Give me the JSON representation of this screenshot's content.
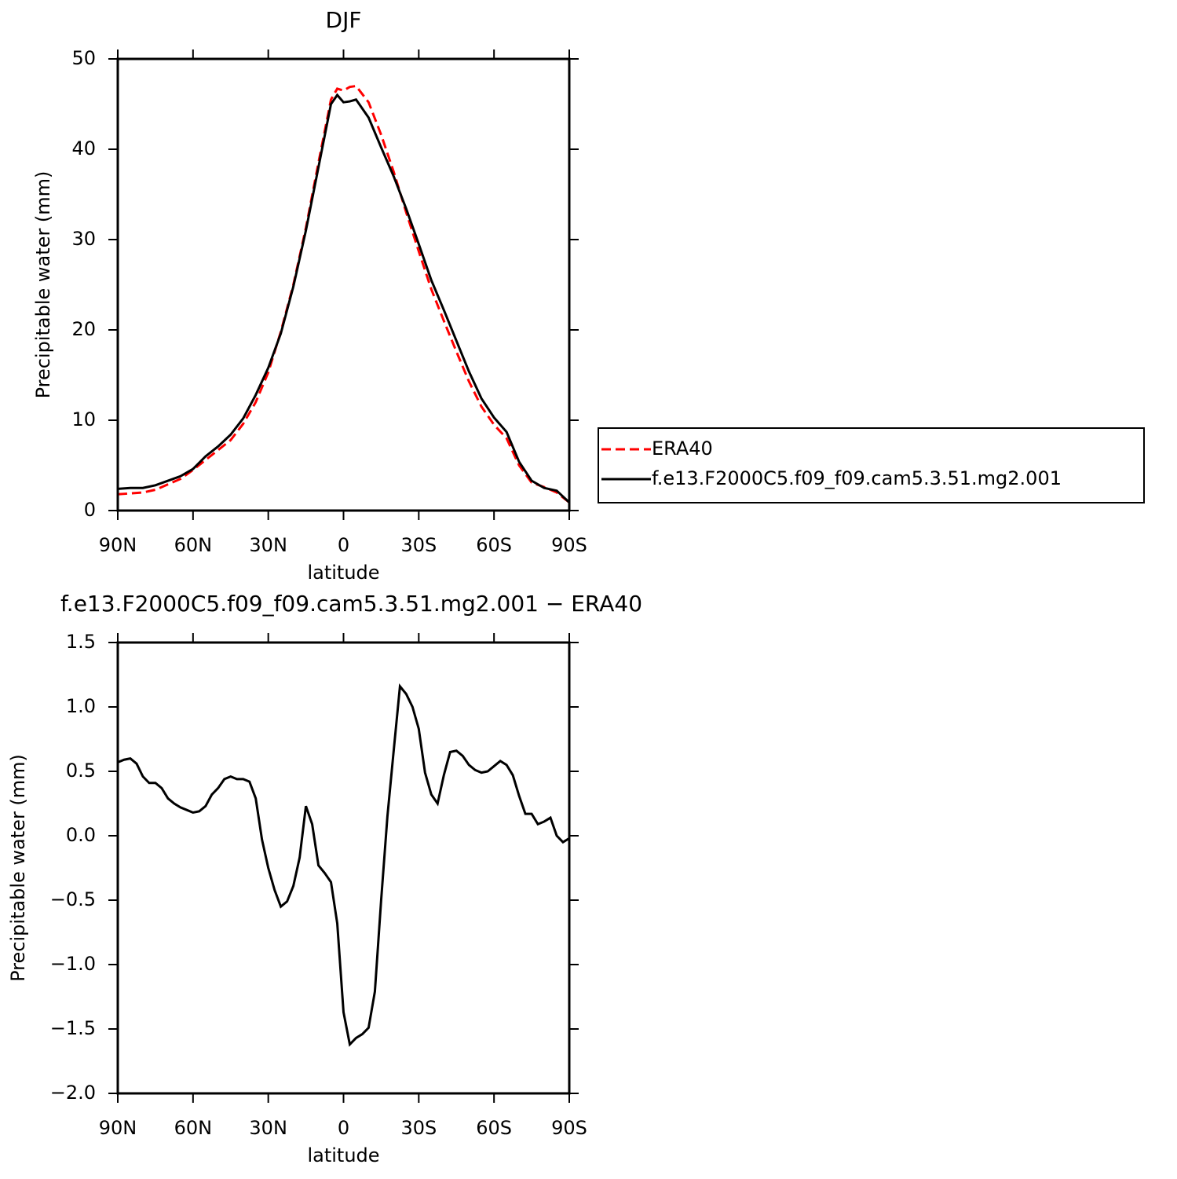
{
  "chart_data": [
    {
      "type": "line",
      "title": "DJF",
      "xlabel": "latitude",
      "ylabel": "Precipitable water (mm)",
      "x": [
        90,
        85,
        80,
        75,
        70,
        65,
        60,
        55,
        50,
        45,
        40,
        35,
        30,
        25,
        20,
        15,
        10,
        5,
        2.5,
        0,
        -2.5,
        -5,
        -10,
        -15,
        -20,
        -25,
        -30,
        -35,
        -40,
        -45,
        -50,
        -55,
        -60,
        -65,
        -70,
        -75,
        -80,
        -85,
        -90
      ],
      "series": [
        {
          "name": "ERA40",
          "color": "#ff0000",
          "dashed": true,
          "values": [
            1.8,
            1.9,
            2.0,
            2.3,
            2.9,
            3.5,
            4.5,
            5.6,
            6.7,
            7.8,
            9.6,
            12.0,
            15.3,
            19.8,
            25,
            31.3,
            38.5,
            45.5,
            46.7,
            46.5,
            46.9,
            47.0,
            45.2,
            41.6,
            37.5,
            33,
            28.7,
            24.5,
            21.0,
            17.6,
            14.3,
            11.5,
            9.5,
            8.0,
            5.0,
            3.1,
            2.6,
            2.0,
            0.9
          ]
        },
        {
          "name": "f.e13.F2000C5.f09_f09.cam5.3.51.mg2.001",
          "color": "#000000",
          "dashed": false,
          "values": [
            2.4,
            2.5,
            2.5,
            2.8,
            3.3,
            3.8,
            4.6,
            6.0,
            7.1,
            8.4,
            10.2,
            12.8,
            15.8,
            19.6,
            24.8,
            31,
            38,
            45,
            46,
            45.2,
            45.3,
            45.5,
            43.5,
            40.2,
            37,
            33.4,
            29.5,
            25.5,
            22.2,
            18.8,
            15.4,
            12.4,
            10.3,
            8.7,
            5.4,
            3.3,
            2.5,
            2.2,
            0.9
          ]
        }
      ],
      "xlim": [
        90,
        -90
      ],
      "xticks": [
        {
          "value": 90,
          "label": "90N"
        },
        {
          "value": 60,
          "label": "60N"
        },
        {
          "value": 30,
          "label": "30N"
        },
        0,
        {
          "value": -30,
          "label": "30S"
        },
        {
          "value": -60,
          "label": "60S"
        },
        {
          "value": -90,
          "label": "90S"
        }
      ],
      "ylim": [
        0,
        50
      ],
      "yticks": [
        0,
        10,
        20,
        30,
        40,
        50
      ],
      "legend": "right"
    },
    {
      "type": "line",
      "title": "f.e13.F2000C5.f09_f09.cam5.3.51.mg2.001 − ERA40",
      "xlabel": "latitude",
      "ylabel": "Precipitable water (mm)",
      "x": [
        90,
        87.5,
        85,
        82.5,
        80,
        77.5,
        75,
        72.5,
        70,
        67.5,
        65,
        62.5,
        60,
        57.5,
        55,
        52.5,
        50,
        47.5,
        45,
        42.5,
        40,
        37.5,
        35,
        32.5,
        30,
        27.5,
        25,
        22.5,
        20,
        17.5,
        15,
        12.5,
        10,
        7.5,
        5,
        2.5,
        0,
        -2.5,
        -5,
        -7.5,
        -10,
        -12.5,
        -15,
        -17.5,
        -20,
        -22.5,
        -25,
        -27.5,
        -30,
        -32.5,
        -35,
        -37.5,
        -40,
        -42.5,
        -45,
        -47.5,
        -50,
        -52.5,
        -55,
        -57.5,
        -60,
        -62.5,
        -65,
        -67.5,
        -70,
        -72.5,
        -75,
        -77.5,
        -80,
        -82.5,
        -85,
        -87.5,
        -90
      ],
      "values": [
        0.57,
        0.59,
        0.6,
        0.56,
        0.46,
        0.41,
        0.41,
        0.37,
        0.29,
        0.25,
        0.22,
        0.2,
        0.18,
        0.19,
        0.23,
        0.32,
        0.37,
        0.44,
        0.46,
        0.44,
        0.44,
        0.42,
        0.29,
        -0.03,
        -0.25,
        -0.42,
        -0.55,
        -0.51,
        -0.39,
        -0.17,
        0.23,
        0.09,
        -0.23,
        -0.29,
        -0.36,
        -0.68,
        -1.37,
        -1.62,
        -1.57,
        -1.54,
        -1.49,
        -1.21,
        -0.5,
        0.15,
        0.66,
        1.16,
        1.1,
        1.0,
        0.83,
        0.49,
        0.32,
        0.25,
        0.47,
        0.65,
        0.66,
        0.62,
        0.55,
        0.51,
        0.49,
        0.5,
        0.54,
        0.58,
        0.55,
        0.47,
        0.31,
        0.17,
        0.17,
        0.09,
        0.11,
        0.14,
        0.0,
        -0.05,
        -0.02
      ],
      "color": "#000000",
      "xlim": [
        90,
        -90
      ],
      "xticks": [
        {
          "value": 90,
          "label": "90N"
        },
        {
          "value": 60,
          "label": "60N"
        },
        {
          "value": 30,
          "label": "30N"
        },
        0,
        {
          "value": -30,
          "label": "30S"
        },
        {
          "value": -60,
          "label": "60S"
        },
        {
          "value": -90,
          "label": "90S"
        }
      ],
      "ylim": [
        -2,
        1.5
      ],
      "yticks": [
        {
          "value": -2,
          "label": "−2.0"
        },
        {
          "value": -1.5,
          "label": "−1.5"
        },
        {
          "value": -1,
          "label": "−1.0"
        },
        {
          "value": -0.5,
          "label": "−0.5"
        },
        {
          "value": 0,
          "label": "0.0"
        },
        0.5,
        {
          "value": 1,
          "label": "1.0"
        },
        1.5
      ]
    }
  ]
}
